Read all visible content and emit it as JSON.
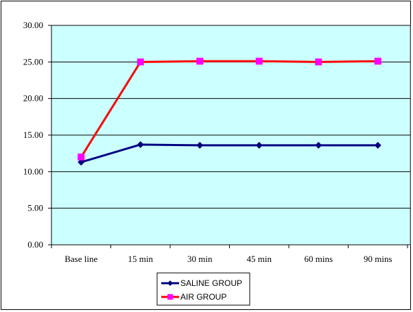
{
  "chart_data": {
    "type": "line",
    "categories": [
      "Base line",
      "15 min",
      "30 min",
      "45 min",
      "60 mins",
      "90 mins"
    ],
    "y_ticks": [
      "0.00",
      "5.00",
      "10.00",
      "15.00",
      "20.00",
      "25.00",
      "30.00"
    ],
    "ylim": [
      0,
      30
    ],
    "point_x": [
      0.5,
      1.5,
      2.5,
      3.5,
      4.5,
      5.5
    ],
    "series": [
      {
        "name": "SALINE GROUP",
        "color": "#000080",
        "marker": "diamond",
        "values": [
          11.3,
          13.7,
          13.6,
          13.6,
          13.6,
          13.6
        ]
      },
      {
        "name": "AIR GROUP",
        "color": "#ff0000",
        "marker": "square",
        "marker_color": "#ff00ff",
        "values": [
          12.0,
          25.0,
          25.1,
          25.1,
          25.0,
          25.1
        ]
      }
    ],
    "grid": true,
    "plot_background": "#ccffff",
    "legend_position": "bottom-center"
  }
}
